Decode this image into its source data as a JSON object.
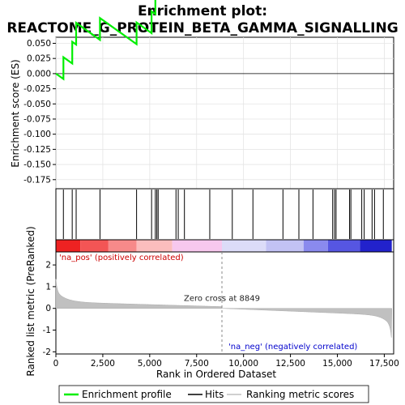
{
  "chart_data": {
    "type": "line",
    "title_line1": "Enrichment plot:",
    "title_line2": "REACTOME_G_PROTEIN_BETA_GAMMA_SIGNALLING",
    "es_ylabel": "Enrichment score (ES)",
    "rank_ylabel": "Ranked list metric (PreRanked)",
    "xlabel": "Rank in Ordered Dataset",
    "xlim": [
      0,
      18000
    ],
    "es_ylim": [
      -0.19,
      0.06
    ],
    "rank_ylim": [
      -2.1,
      2.6
    ],
    "x_ticks": [
      "0",
      "2,500",
      "5,000",
      "7,500",
      "10,000",
      "12,500",
      "15,000",
      "17,500"
    ],
    "x_tick_values": [
      0,
      2500,
      5000,
      7500,
      10000,
      12500,
      15000,
      17500
    ],
    "es_ticks": [
      "0.050",
      "0.025",
      "0.000",
      "-0.025",
      "-0.050",
      "-0.075",
      "-0.100",
      "-0.125",
      "-0.150",
      "-0.175"
    ],
    "es_tick_values": [
      0.05,
      0.025,
      0.0,
      -0.025,
      -0.05,
      -0.075,
      -0.1,
      -0.125,
      -0.15,
      -0.175
    ],
    "rank_ticks": [
      "2",
      "1",
      "0",
      "-1",
      "-2"
    ],
    "rank_tick_values": [
      2,
      1,
      0,
      -1,
      -2
    ],
    "pos_label": "'na_pos' (positively correlated)",
    "neg_label": "'na_neg' (negatively correlated)",
    "zero_cross_label": "Zero cross at 8849",
    "zero_cross": 8849,
    "n_genes": 17900,
    "hits": [
      400,
      870,
      1080,
      2350,
      4300,
      5100,
      5300,
      5380,
      5450,
      6400,
      6520,
      6850,
      8200,
      9400,
      10500,
      12100,
      12950,
      13700,
      14750,
      14850,
      14930,
      15650,
      15720,
      16300,
      16430,
      16850,
      16980,
      17450
    ],
    "es_start": 0.0,
    "es_step_down": -2.21e-05,
    "es_hit_up": 0.0359,
    "series": [
      {
        "name": "Enrichment profile",
        "color": "#00ff00"
      },
      {
        "name": "Hits",
        "color": "#000000"
      },
      {
        "name": "Ranking metric scores",
        "color": "#c0c0c0"
      }
    ],
    "heatmap_colors": [
      "#ee2222",
      "#f35555",
      "#f78a8a",
      "#fbbdbd",
      "#f7c8ee",
      "#dcdcf8",
      "#c2c2f4",
      "#8a8aee",
      "#5656e2",
      "#2222cc"
    ],
    "legend_placement": "bottom"
  }
}
